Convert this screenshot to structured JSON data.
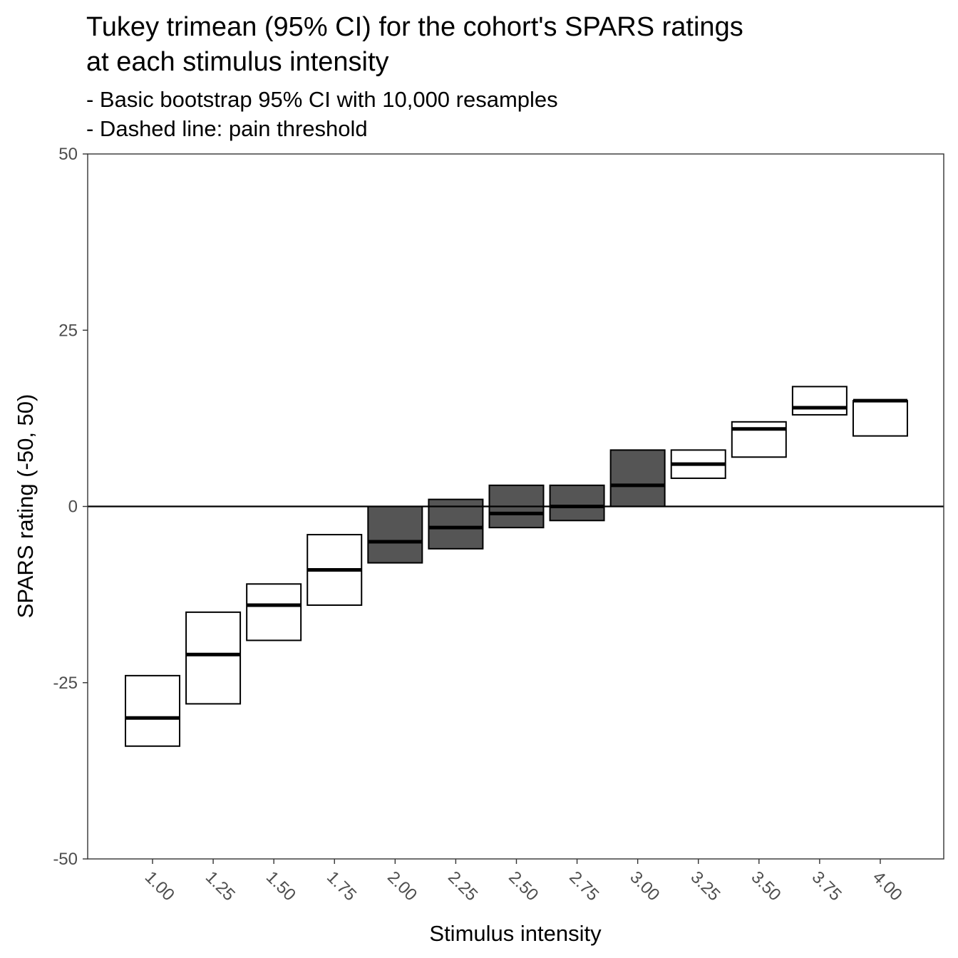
{
  "chart_data": {
    "type": "crossbar",
    "title_lines": [
      "Tukey trimean (95% CI) for the cohort's SPARS ratings",
      "at each stimulus intensity"
    ],
    "subtitle_lines": [
      "- Basic bootstrap 95% CI with 10,000 resamples",
      "- Dashed line: pain threshold"
    ],
    "xlabel": "Stimulus intensity",
    "ylabel": "SPARS rating (-50, 50)",
    "ylim": [
      -50,
      50
    ],
    "y_ticks": [
      "-50",
      "-25",
      "0",
      "25",
      "50"
    ],
    "reference_line_y": 0,
    "grid": false,
    "colors": {
      "fill_below_threshold": "#ffffff",
      "fill_spanning_threshold": "#555555",
      "fill_above_threshold": "#ffffff",
      "outline": "#000000",
      "reference_line": "#000000"
    },
    "categories": [
      "1.00",
      "1.25",
      "1.50",
      "1.75",
      "2.00",
      "2.25",
      "2.50",
      "2.75",
      "3.00",
      "3.25",
      "3.50",
      "3.75",
      "4.00"
    ],
    "series": [
      {
        "trimean": [
          -30,
          -21,
          -14,
          -9,
          -5,
          -3,
          -1,
          0,
          3,
          6,
          11,
          14,
          15
        ],
        "ci_lower": [
          -34,
          -28,
          -19,
          -14,
          -8,
          -6,
          -3,
          -2,
          0,
          4,
          7,
          13,
          10
        ],
        "ci_upper": [
          -24,
          -15,
          -11,
          -4,
          0,
          1,
          3,
          3,
          8,
          8,
          12,
          17,
          15
        ]
      }
    ]
  }
}
